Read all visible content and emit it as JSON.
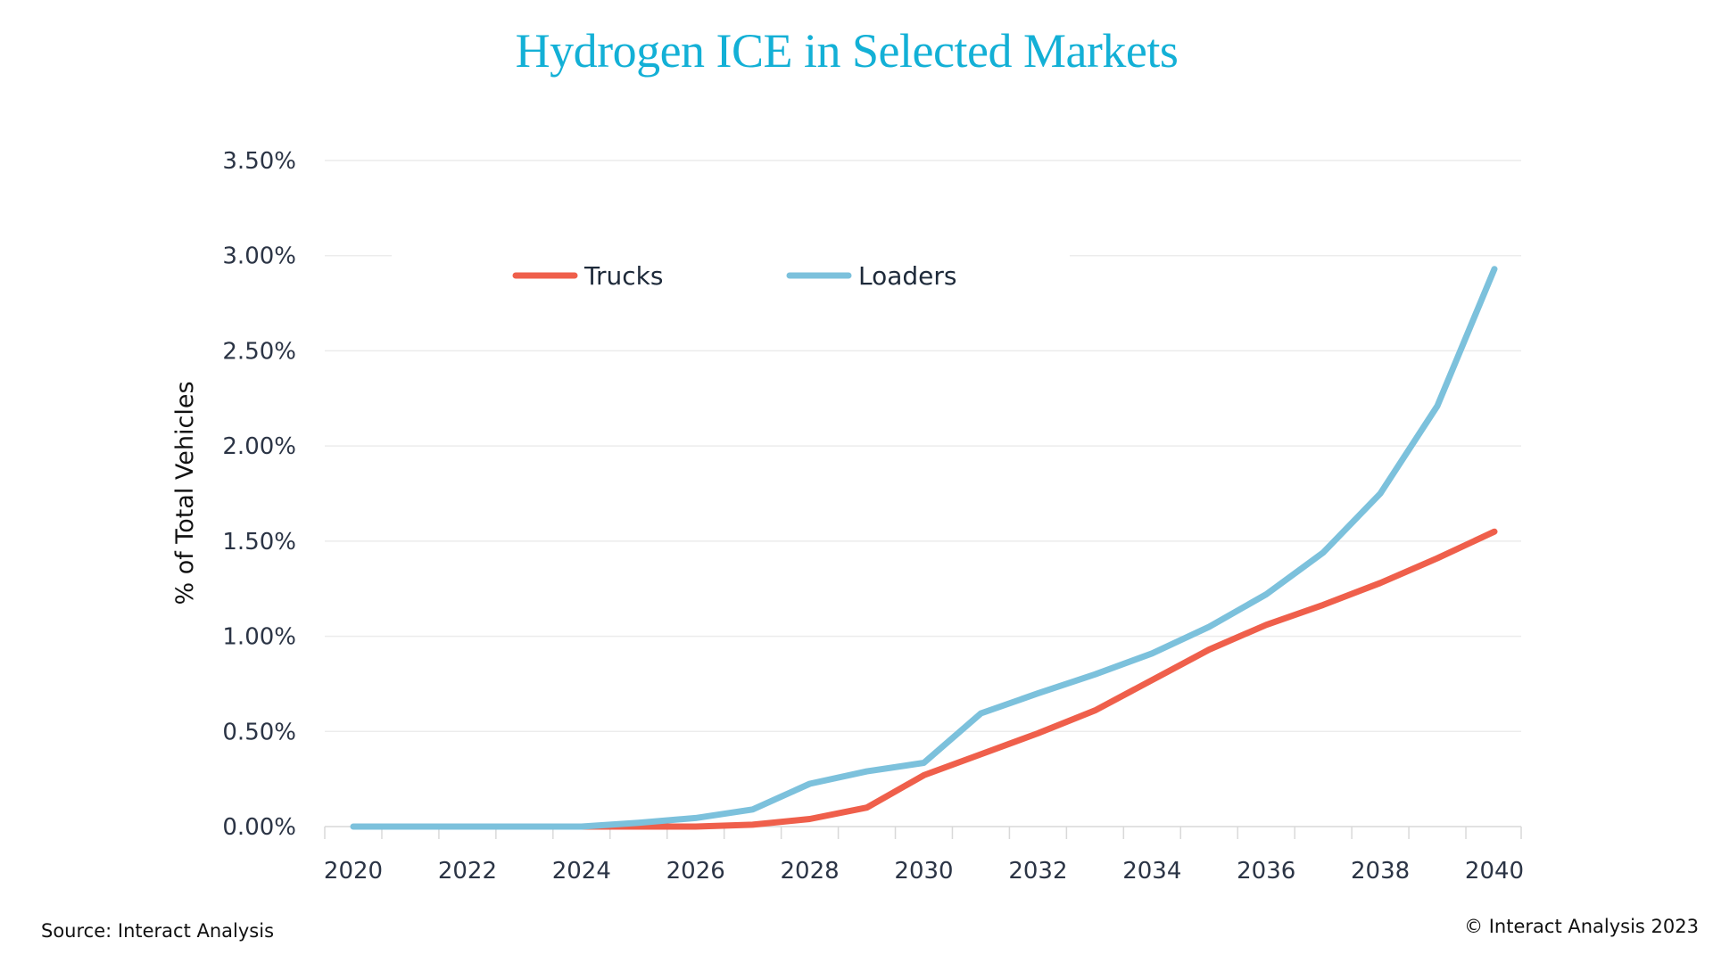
{
  "chart_data": {
    "type": "line",
    "title": "Hydrogen ICE in Selected Markets",
    "xlabel": "",
    "ylabel": "% of Total Vehicles",
    "x": [
      2020,
      2021,
      2022,
      2023,
      2024,
      2025,
      2026,
      2027,
      2028,
      2029,
      2030,
      2031,
      2032,
      2033,
      2034,
      2035,
      2036,
      2037,
      2038,
      2039,
      2040
    ],
    "x_tick_labels": [
      "2020",
      "2022",
      "2024",
      "2026",
      "2028",
      "2030",
      "2032",
      "2034",
      "2036",
      "2038",
      "2040"
    ],
    "y_tick_labels": [
      "0.00%",
      "0.50%",
      "1.00%",
      "1.50%",
      "2.00%",
      "2.50%",
      "3.00%",
      "3.50%"
    ],
    "ylim": [
      0,
      3.5
    ],
    "grid": "horizontal",
    "legend_position": "top-left",
    "series": [
      {
        "name": "Trucks",
        "color": "#ef5f4b",
        "x_start": 2024,
        "values": [
          null,
          null,
          null,
          null,
          0,
          0,
          0,
          0.01,
          0.04,
          0.1,
          0.27,
          0.38,
          0.49,
          0.61,
          0.77,
          0.93,
          1.06,
          1.165,
          1.28,
          1.41,
          1.55
        ]
      },
      {
        "name": "Loaders",
        "color": "#7cc1dc",
        "x_start": 2020,
        "values": [
          0,
          0,
          0,
          0,
          0,
          0.02,
          0.045,
          0.09,
          0.225,
          0.29,
          0.335,
          0.595,
          0.7,
          0.8,
          0.91,
          1.05,
          1.22,
          1.44,
          1.75,
          2.21,
          2.93
        ]
      }
    ]
  },
  "footer": {
    "source": "Source: Interact Analysis",
    "copyright": "© Interact Analysis 2023"
  }
}
